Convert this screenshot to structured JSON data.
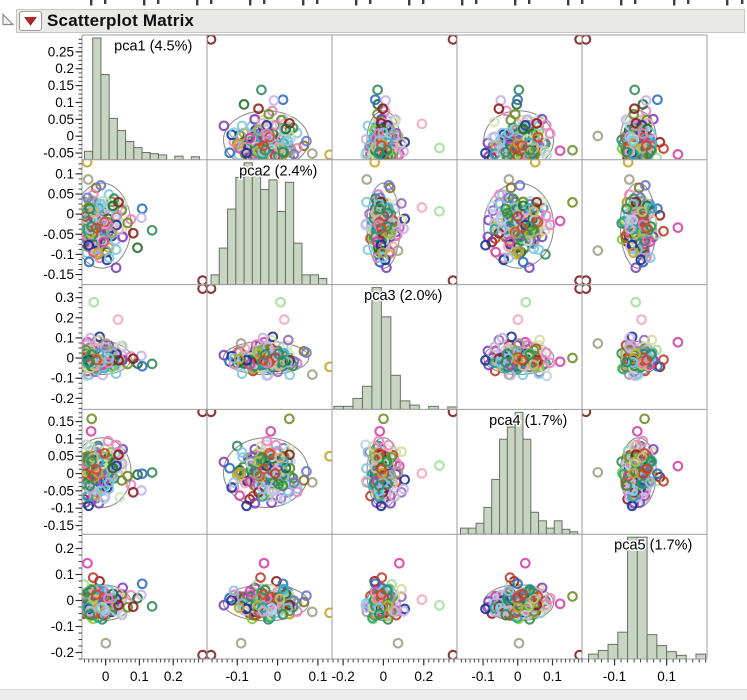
{
  "window": {
    "top_clipped_marks": [
      90,
      104,
      143,
      157,
      196,
      210,
      249,
      263,
      302,
      316,
      355,
      369,
      408,
      422,
      461,
      475,
      514,
      528,
      567,
      581,
      620,
      634,
      673,
      687,
      726,
      741
    ]
  },
  "header": {
    "title": "Scatterplot Matrix",
    "disclosure_icon": "open-outline-triangle",
    "menu_icon": "red-triangle-menu",
    "bar_color": "#e9e9e7",
    "menu_triangle_color": "#c32222"
  },
  "chart_data": {
    "type": "scatterplot-matrix",
    "marker": "open-circle",
    "n_points": 195,
    "seed": 1360427,
    "panel_border": "#9c9c9c",
    "histogram_fill": "#c9d5c3",
    "histogram_stroke": "#64735f",
    "ellipse_color": "#8f8f8f",
    "point_style": {
      "radius": 4.3,
      "stroke_width": 2.1,
      "opacity": 0.88
    },
    "pinned_outlier": {
      "color": "#7a1d1d",
      "values": [
        0.287,
        -0.165,
        0.345,
        0.178,
        -0.21
      ]
    },
    "palette": [
      "#8c1a1a",
      "#c0392b",
      "#d2452c",
      "#b5651d",
      "#8a6d1f",
      "#c9a227",
      "#cdbd6f",
      "#d8d89a",
      "#9acd32",
      "#7ccf2a",
      "#4daf2a",
      "#2e8b57",
      "#1b6b2a",
      "#9fdf9f",
      "#cde8b5",
      "#6b8e23",
      "#18a8a0",
      "#29b6d8",
      "#7ec8e3",
      "#b3d4ee",
      "#2a6bc0",
      "#1a2f8f",
      "#6677cc",
      "#7d3fc1",
      "#9467bd",
      "#c5b3e6",
      "#d63fa6",
      "#ee7fc0",
      "#f4a7b9",
      "#9e9e86"
    ],
    "variables": [
      {
        "name": "pca1",
        "label": "pca1 (4.5%)",
        "range": [
          -0.07,
          0.3
        ],
        "minor_step": 0.0125,
        "dist": {
          "center": -0.028,
          "spread": 0.058,
          "skew": 1.3,
          "tail": 0.05
        },
        "hist": {
          "start": -0.0625,
          "binw": 0.0243,
          "heights": [
            0.07,
            1,
            0.7,
            0.34,
            0.24,
            0.15,
            0.1,
            0.06,
            0.05,
            0.04,
            0,
            0.03,
            0,
            0.025
          ]
        },
        "y_ticks": {
          "values": [
            0.25,
            0.2,
            0.15,
            0.1,
            0.05,
            0,
            -0.05
          ],
          "labels": [
            "0.25",
            "0.2",
            "0.15",
            "0.1",
            "0.05",
            "0",
            "-0.05"
          ]
        },
        "x_ticks": {
          "values": [
            0,
            0.1,
            0.2
          ],
          "labels": [
            "0",
            "0.1",
            "0.2"
          ]
        }
      },
      {
        "name": "pca2",
        "label": "pca2 (2.4%)",
        "range": [
          -0.175,
          0.135
        ],
        "minor_step": 0.0125,
        "dist": {
          "center": -0.022,
          "spread": 0.075,
          "skew": 0,
          "tail": 0.04
        },
        "hist": {
          "start": -0.165,
          "binw": 0.0205,
          "heights": [
            0.08,
            0.3,
            0.62,
            0.88,
            1,
            0.96,
            0.78,
            0.86,
            0.6,
            0.84,
            0.34,
            0.08,
            0.08,
            0.05
          ]
        },
        "y_ticks": {
          "values": [
            0.1,
            0.05,
            0,
            -0.05,
            -0.1,
            -0.15
          ],
          "labels": [
            "0.1",
            "0.05",
            "0",
            "-0.05",
            "-0.1",
            "-0.15"
          ]
        },
        "x_ticks": {
          "values": [
            -0.1,
            0,
            0.1
          ],
          "labels": [
            "-0.1",
            "0",
            "0.1"
          ]
        }
      },
      {
        "name": "pca3",
        "label": "pca3 (2.0%)",
        "range": [
          -0.255,
          0.365
        ],
        "minor_step": 0.025,
        "dist": {
          "center": -0.01,
          "spread": 0.055,
          "skew": 0.8,
          "tail": 0.07
        },
        "hist": {
          "start": -0.245,
          "binw": 0.047,
          "heights": [
            0.025,
            0.025,
            0.09,
            0.19,
            1,
            0.76,
            0.28,
            0.07,
            0.035,
            0,
            0.025,
            0,
            0.02
          ]
        },
        "y_ticks": {
          "values": [
            0.3,
            0.2,
            0.1,
            0,
            -0.1,
            -0.2
          ],
          "labels": [
            "0.3",
            "0.2",
            "0.1",
            "0",
            "-0.1",
            "-0.2"
          ]
        },
        "x_ticks": {
          "values": [
            -0.2,
            0,
            0.2
          ],
          "labels": [
            "-0.2",
            "0",
            "0.2"
          ]
        }
      },
      {
        "name": "pca4",
        "label": "pca4 (1.7%)",
        "range": [
          -0.175,
          0.185
        ],
        "minor_step": 0.0125,
        "dist": {
          "center": 0.004,
          "spread": 0.07,
          "skew": 0,
          "tail": 0.05
        },
        "hist": {
          "start": -0.165,
          "binw": 0.0225,
          "heights": [
            0.05,
            0.05,
            0.09,
            0.22,
            0.45,
            0.78,
            0.88,
            1,
            0.78,
            0.18,
            0.11,
            0.05,
            0.11,
            0.04,
            0.02
          ]
        },
        "y_ticks": {
          "values": [
            0.15,
            0.1,
            0.05,
            0,
            -0.05,
            -0.1,
            -0.15
          ],
          "labels": [
            "0.15",
            "0.1",
            "0.05",
            "0",
            "-0.05",
            "-0.1",
            "-0.15"
          ]
        },
        "x_ticks": {
          "values": [
            -0.1,
            0,
            0.1
          ],
          "labels": [
            "-0.1",
            "0",
            "0.1"
          ]
        }
      },
      {
        "name": "pca5",
        "label": "pca5 (1.7%)",
        "range": [
          -0.225,
          0.255
        ],
        "minor_step": 0.025,
        "dist": {
          "center": -0.006,
          "spread": 0.052,
          "skew": 0,
          "tail": 0.09
        },
        "hist": {
          "start": -0.2,
          "binw": 0.0375,
          "heights": [
            0.04,
            0.07,
            0.12,
            0.22,
            1,
            1,
            0.2,
            0.11,
            0.06,
            0.03,
            0,
            0.04
          ]
        },
        "y_ticks": {
          "values": [
            0.2,
            0.1,
            0,
            -0.1,
            -0.2
          ],
          "labels": [
            "0.2",
            "0.1",
            "0",
            "-0.1",
            "-0.2"
          ]
        },
        "x_ticks": {
          "values": [
            -0.1,
            0.1
          ],
          "labels": [
            "-0.1",
            "0.1"
          ]
        }
      }
    ]
  }
}
